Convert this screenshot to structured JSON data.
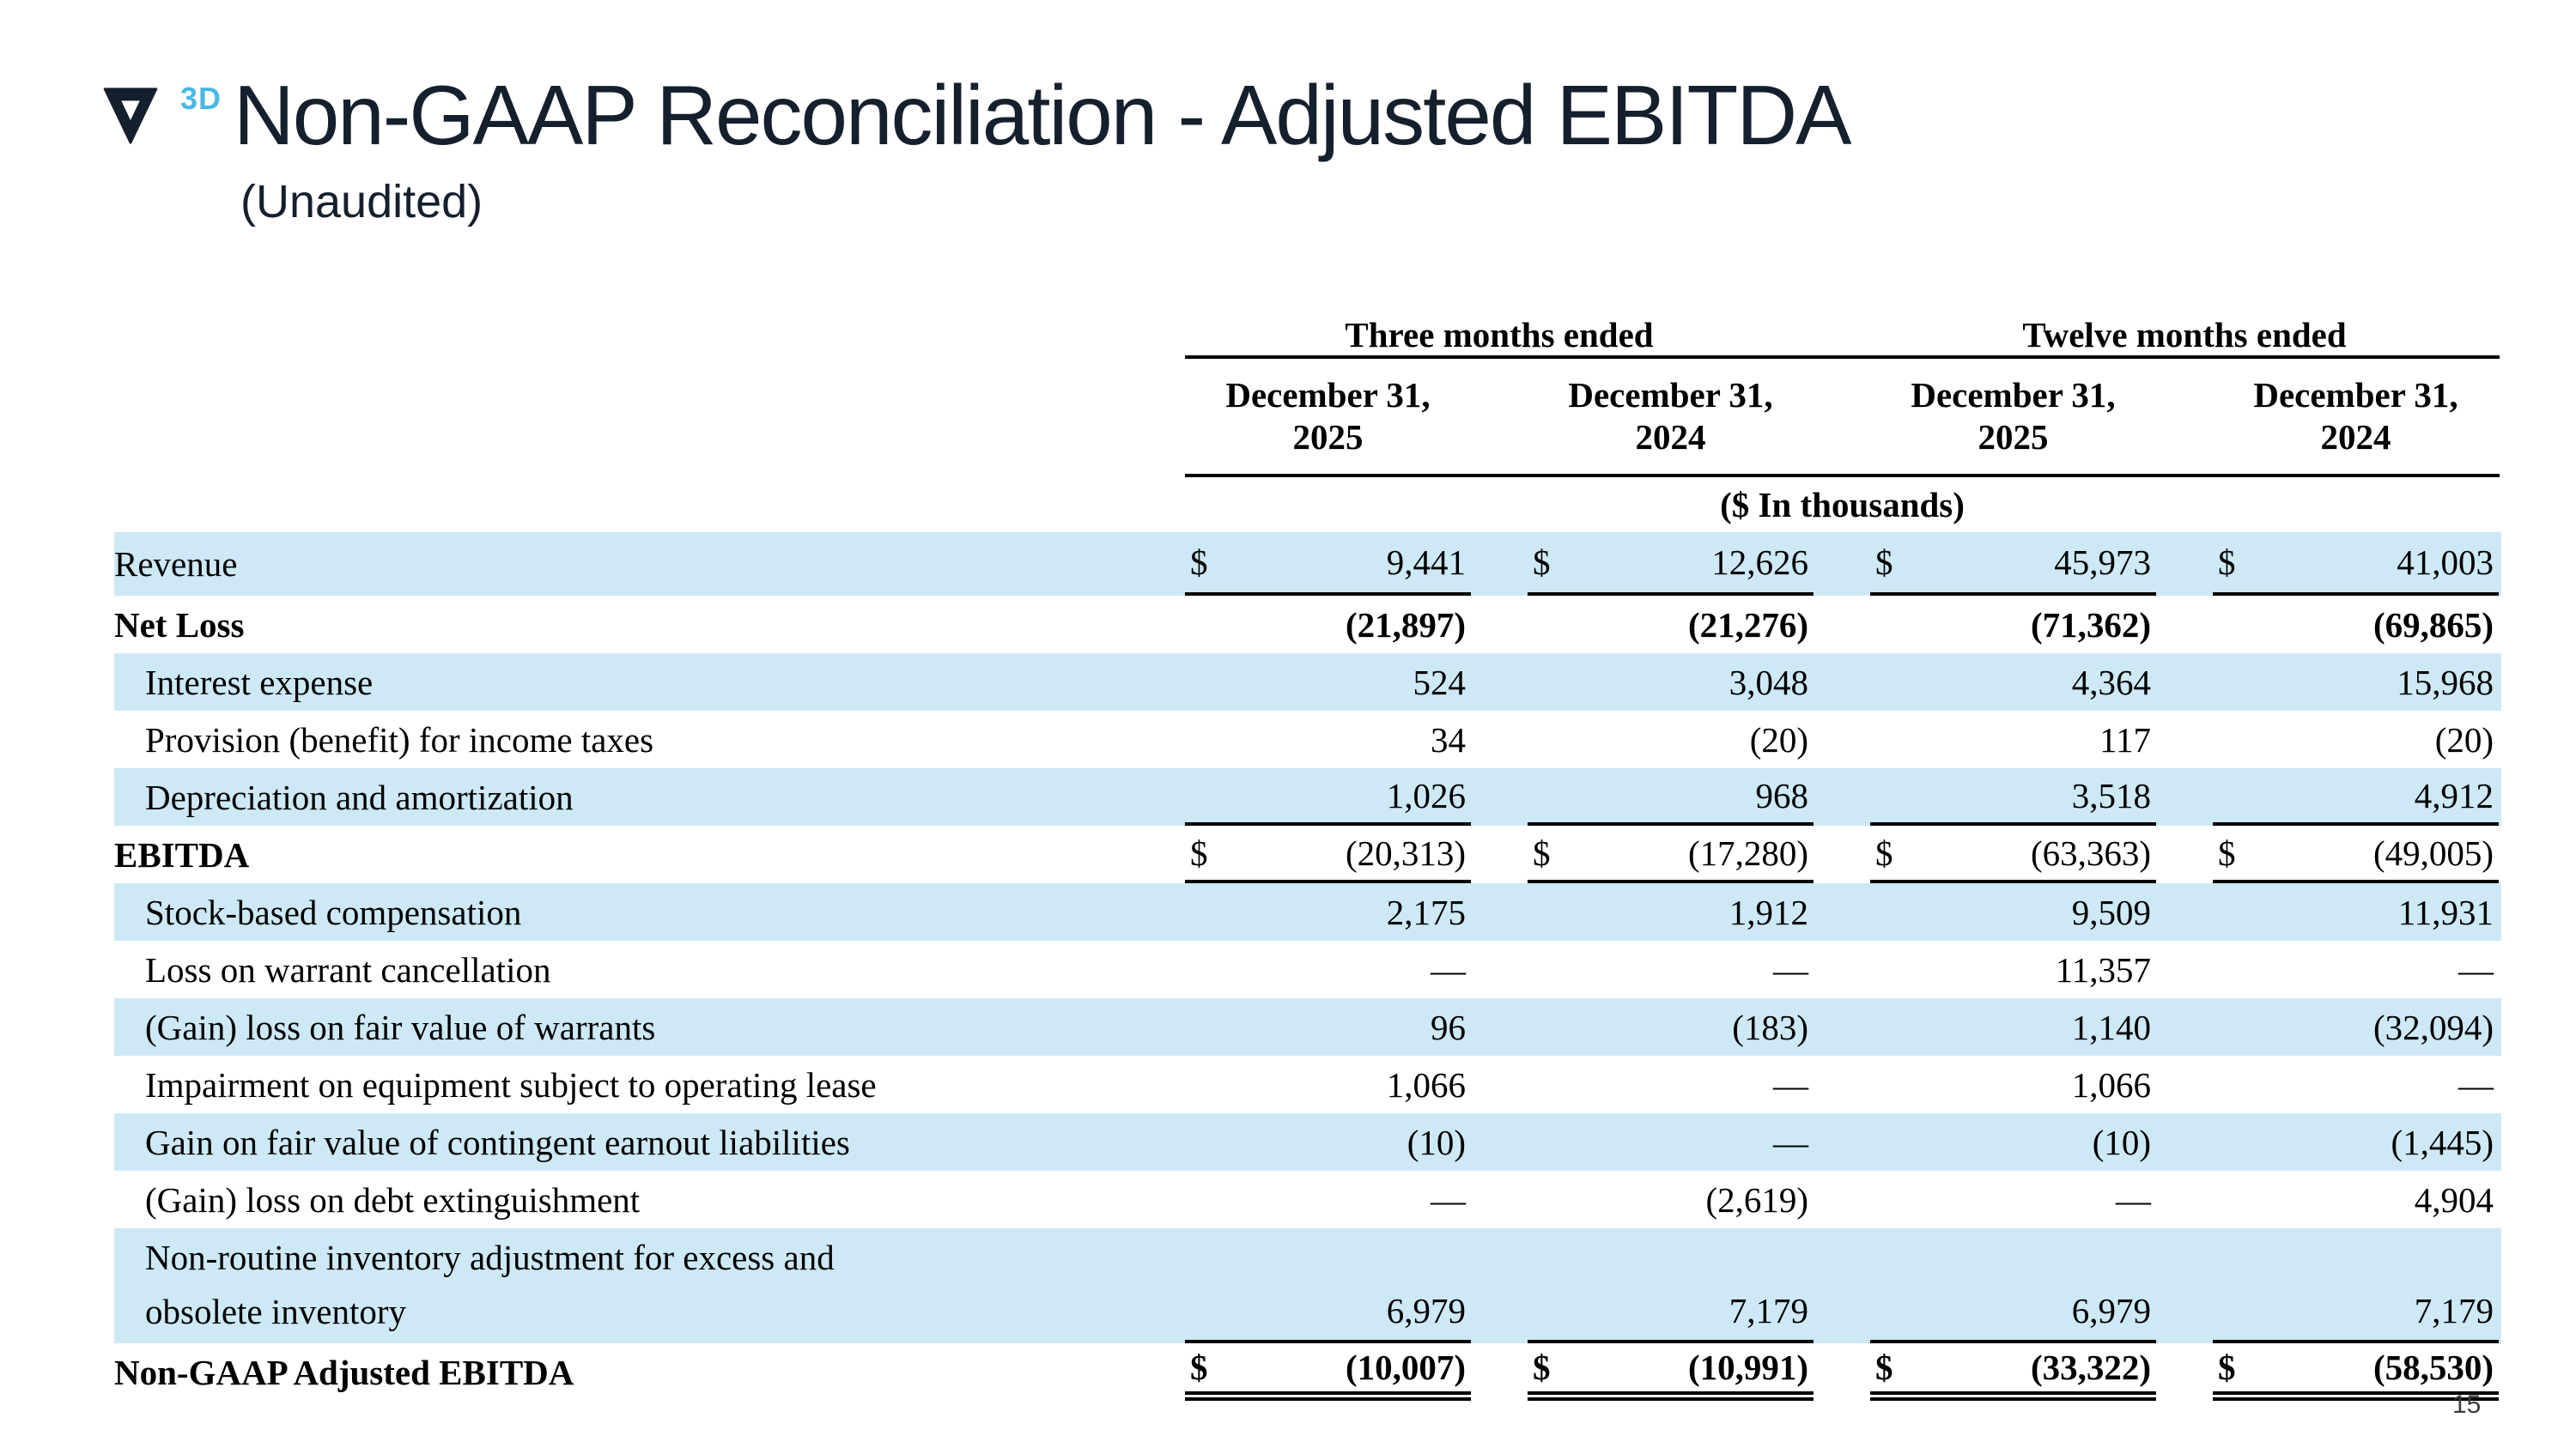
{
  "slide": {
    "logo_3d": "3D",
    "title": "Non-GAAP Reconciliation - Adjusted EBITDA",
    "subtitle": "(Unaudited)",
    "page_number": "15",
    "colors": {
      "title_navy": "#15202e",
      "logo_blue": "#49b8e5",
      "row_band_blue": "#cde9f6"
    }
  },
  "table": {
    "currency_symbol": "$",
    "group_headers": [
      "Three months ended",
      "Twelve months ended"
    ],
    "col_headers": [
      "December 31,\n2025",
      "December 31,\n2024",
      "December 31,\n2025",
      "December 31,\n2024"
    ],
    "units_note": "($ In thousands)",
    "rows": [
      {
        "label": "Revenue",
        "band": true,
        "dollar": true,
        "rule": "single",
        "h": 74,
        "values": [
          "9,441",
          "12,626",
          "45,973",
          "41,003"
        ]
      },
      {
        "label": "Net Loss",
        "bold": true,
        "values_bold": true,
        "values": [
          "(21,897)",
          "(21,276)",
          "(71,362)",
          "(69,865)"
        ]
      },
      {
        "label": "Interest expense",
        "indent": true,
        "band": true,
        "values": [
          "524",
          "3,048",
          "4,364",
          "15,968"
        ]
      },
      {
        "label": "Provision (benefit) for income taxes",
        "indent": true,
        "values": [
          "34",
          "(20)",
          "117",
          "(20)"
        ]
      },
      {
        "label": "Depreciation and amortization",
        "indent": true,
        "band": true,
        "rule": "single",
        "values": [
          "1,026",
          "968",
          "3,518",
          "4,912"
        ]
      },
      {
        "label": "EBITDA",
        "bold": true,
        "dollar": true,
        "rule": "single",
        "values": [
          "(20,313)",
          "(17,280)",
          "(63,363)",
          "(49,005)"
        ]
      },
      {
        "label": "Stock-based compensation",
        "indent": true,
        "band": true,
        "values": [
          "2,175",
          "1,912",
          "9,509",
          "11,931"
        ]
      },
      {
        "label": "Loss on warrant cancellation",
        "indent": true,
        "values": [
          "—",
          "—",
          "11,357",
          "—"
        ]
      },
      {
        "label": "(Gain) loss on fair value of warrants",
        "indent": true,
        "band": true,
        "values": [
          "96",
          "(183)",
          "1,140",
          "(32,094)"
        ]
      },
      {
        "label": "Impairment on equipment subject to operating lease",
        "indent": true,
        "values": [
          "1,066",
          "—",
          "1,066",
          "—"
        ]
      },
      {
        "label": "Gain on fair value of contingent earnout liabilities",
        "indent": true,
        "band": true,
        "values": [
          "(10)",
          "—",
          "(10)",
          "(1,445)"
        ]
      },
      {
        "label": "(Gain) loss on debt extinguishment",
        "indent": true,
        "values": [
          "—",
          "(2,619)",
          "—",
          "4,904"
        ]
      },
      {
        "label": "Non-routine inventory adjustment for excess and",
        "label2": "obsolete inventory",
        "indent": true,
        "band": true,
        "tall": true,
        "rule": "single",
        "values": [
          "6,979",
          "7,179",
          "6,979",
          "7,179"
        ]
      },
      {
        "label": "Non-GAAP Adjusted EBITDA",
        "bold": true,
        "dollar": true,
        "values_bold": true,
        "rule": "double",
        "values": [
          "(10,007)",
          "(10,991)",
          "(33,322)",
          "(58,530)"
        ]
      }
    ]
  }
}
